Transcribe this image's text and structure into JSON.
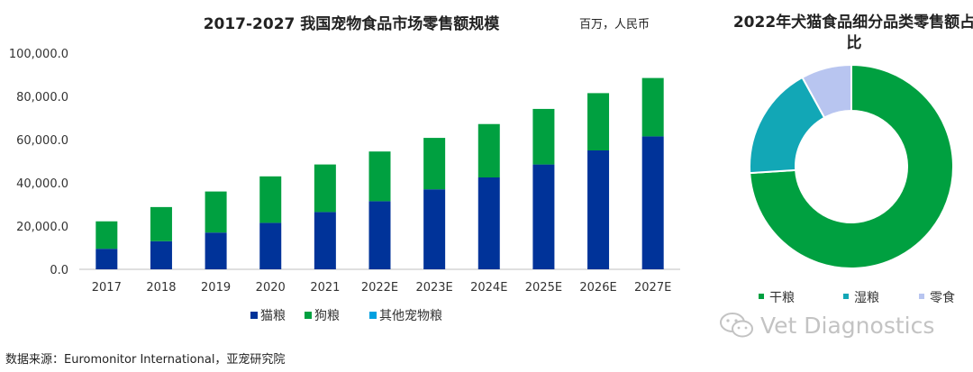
{
  "bar_chart_title": "2017-2027 我国宠物食品市场零售额规模",
  "unit_label": "百万，人民币",
  "pie_chart_title": "2022年犬猫食品细分品类零售额占比",
  "source": "数据来源：Euromonitor International，亚宠研究院",
  "watermark": "Vet Diagnostics",
  "colors": {
    "cat_food": "#003399",
    "dog_food": "#00A040",
    "other_food": "#00A0E0",
    "dry": "#00A040",
    "wet": "#12A7B6",
    "snack": "#B8C5F0"
  },
  "chart_data": [
    {
      "type": "bar",
      "stacked": true,
      "title": "2017-2027 我国宠物食品市场零售额规模",
      "categories": [
        "2017",
        "2018",
        "2019",
        "2020",
        "2021",
        "2022E",
        "2023E",
        "2024E",
        "2025E",
        "2026E",
        "2027E"
      ],
      "series": [
        {
          "name": "猫粮",
          "color": "#003399",
          "values": [
            9500,
            13000,
            17000,
            21500,
            26500,
            31500,
            37000,
            42500,
            48500,
            55000,
            61500
          ]
        },
        {
          "name": "狗粮",
          "color": "#00A040",
          "values": [
            12700,
            15800,
            19000,
            21500,
            22000,
            23000,
            23800,
            24700,
            25700,
            26500,
            27000
          ]
        },
        {
          "name": "其他宠物粮",
          "color": "#00A0E0",
          "values": [
            0,
            0,
            0,
            0,
            0,
            0,
            0,
            0,
            0,
            0,
            0
          ]
        }
      ],
      "ylim": [
        0,
        100000
      ],
      "yticks": [
        "100,000.0",
        "80,000.0",
        "60,000.0",
        "40,000.0",
        "20,000.0",
        "0.0"
      ],
      "ytick_values": [
        100000,
        80000,
        60000,
        40000,
        20000,
        0
      ],
      "legend_position": "bottom",
      "grid": false
    },
    {
      "type": "pie",
      "donut": true,
      "title": "2022年犬猫食品细分品类零售额占比",
      "slices": [
        {
          "name": "干粮",
          "value": 74,
          "color": "#00A040"
        },
        {
          "name": "湿粮",
          "value": 18,
          "color": "#12A7B6"
        },
        {
          "name": "零食",
          "value": 8,
          "color": "#B8C5F0"
        }
      ],
      "legend_position": "bottom"
    }
  ]
}
